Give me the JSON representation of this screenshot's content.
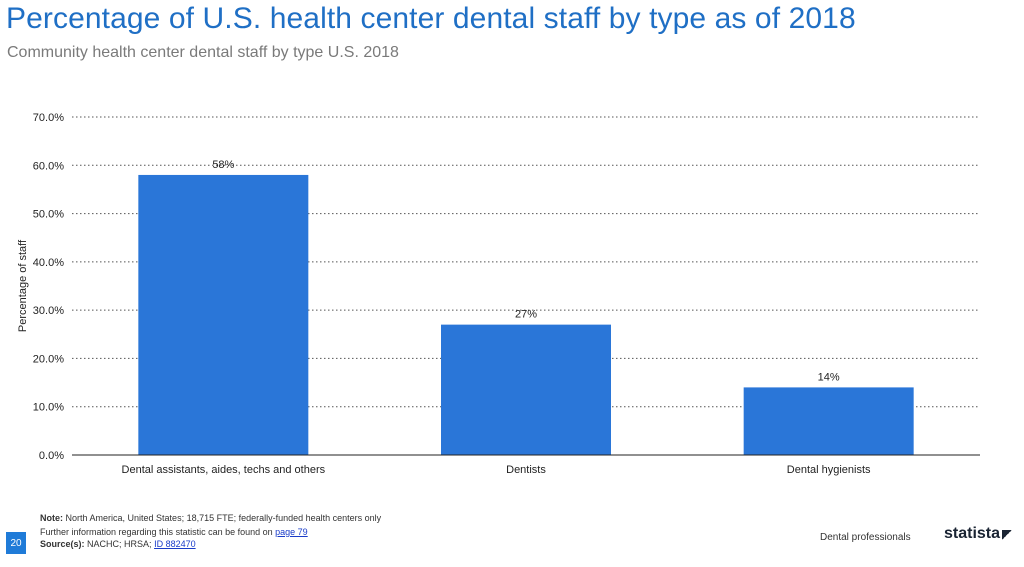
{
  "header": {
    "title": "Percentage of U.S. health center dental staff by type as of 2018",
    "subtitle": "Community health center dental staff by type U.S. 2018"
  },
  "chart_data": {
    "type": "bar",
    "categories": [
      "Dental assistants, aides, techs and others",
      "Dentists",
      "Dental hygienists"
    ],
    "values": [
      58,
      27,
      14
    ],
    "data_labels": [
      "58%",
      "27%",
      "14%"
    ],
    "ylabel": "Percentage of staff",
    "ylim": [
      0,
      70
    ],
    "yticks": [
      "0.0%",
      "10.0%",
      "20.0%",
      "30.0%",
      "40.0%",
      "50.0%",
      "60.0%",
      "70.0%"
    ],
    "grid": true,
    "bar_color": "#2a76d8"
  },
  "footer": {
    "note_label": "Note:",
    "note_text": "North America, United States; 18,715 FTE; federally-funded health centers only",
    "further_info": "Further information regarding this statistic can be found on",
    "page_link": "page 79",
    "source_label": "Source(s):",
    "source_text": "NACHC; HRSA;",
    "id_link": "ID 882470",
    "page_number": "20",
    "category": "Dental professionals",
    "brand": "statista"
  }
}
